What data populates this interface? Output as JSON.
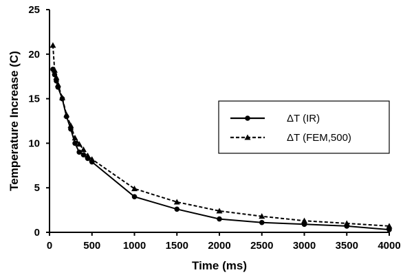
{
  "chart_data": {
    "type": "line",
    "xlabel": "Time (ms)",
    "ylabel": "Temperature Increase (C)",
    "xlim": [
      0,
      4000
    ],
    "ylim": [
      0,
      25
    ],
    "xticks": [
      "0",
      "500",
      "1000",
      "1500",
      "2000",
      "2500",
      "3000",
      "3500",
      "4000"
    ],
    "yticks": [
      "0",
      "5",
      "10",
      "15",
      "20",
      "25"
    ],
    "grid": false,
    "legend": {
      "placement": "right"
    },
    "series": [
      {
        "name": "ΔT (IR)",
        "style": "solid",
        "marker": "circle",
        "x": [
          40,
          60,
          80,
          100,
          150,
          200,
          250,
          300,
          350,
          400,
          450,
          500,
          1000,
          1500,
          2000,
          2500,
          3000,
          3500,
          4000
        ],
        "y": [
          18.3,
          17.7,
          17.0,
          16.3,
          15.0,
          13.0,
          11.6,
          10.0,
          9.0,
          8.7,
          8.3,
          7.9,
          4.0,
          2.6,
          1.5,
          1.1,
          0.9,
          0.7,
          0.3
        ]
      },
      {
        "name": "ΔT (FEM,500)",
        "style": "dashed",
        "marker": "triangle",
        "x": [
          40,
          60,
          80,
          100,
          150,
          200,
          250,
          300,
          350,
          400,
          450,
          500,
          1000,
          1500,
          2000,
          2500,
          3000,
          3500,
          4000
        ],
        "y": [
          21.0,
          18.2,
          17.4,
          16.6,
          15.1,
          13.2,
          12.0,
          10.6,
          9.9,
          9.3,
          8.6,
          8.2,
          4.9,
          3.4,
          2.4,
          1.8,
          1.3,
          1.0,
          0.7
        ]
      }
    ]
  }
}
